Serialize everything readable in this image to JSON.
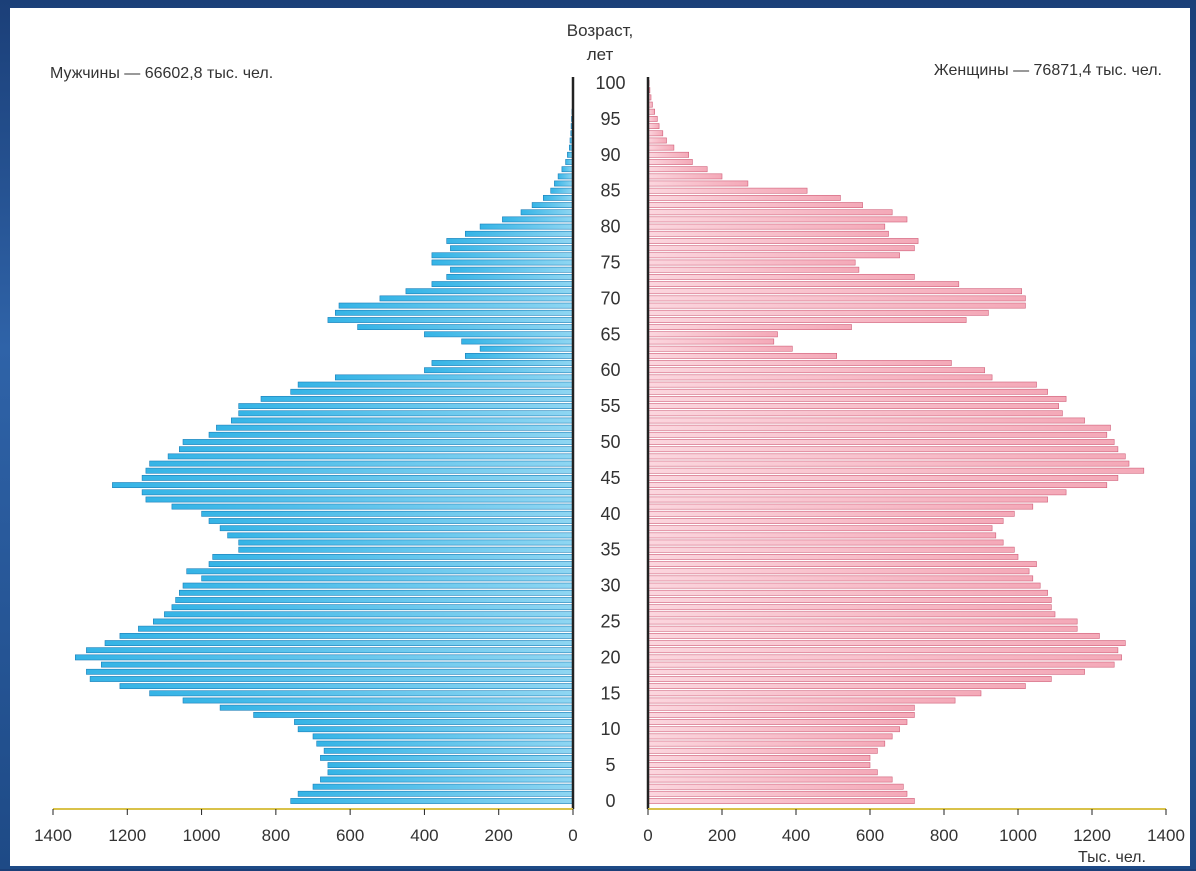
{
  "colors": {
    "male_bar": "#35b4e6",
    "male_bar_light": "#8fd6f2",
    "male_stroke": "#1d7fb8",
    "female_bar": "#f4a9b8",
    "female_bar_light": "#fbd6de",
    "female_stroke": "#d0607a",
    "axis": "#222222",
    "baseline": "#d9c24a",
    "text": "#333333"
  },
  "chart_data": {
    "type": "population_pyramid",
    "title_left": "Мужчины — 66602,8 тыс. чел.",
    "title_right": "Женщины — 76871,4 тыс. чел.",
    "age_axis_label_line1": "Возраст,",
    "age_axis_label_line2": "лет",
    "value_axis_unit": "Тыс. чел.",
    "age_ticks": [
      "0",
      "5",
      "10",
      "15",
      "20",
      "25",
      "30",
      "35",
      "40",
      "45",
      "50",
      "55",
      "60",
      "65",
      "70",
      "75",
      "80",
      "85",
      "90",
      "95",
      "100"
    ],
    "value_ticks_left": [
      "1400",
      "1200",
      "1000",
      "800",
      "600",
      "400",
      "200",
      "0"
    ],
    "value_ticks_right": [
      "0",
      "200",
      "400",
      "600",
      "800",
      "1000",
      "1200",
      "1400"
    ],
    "xlim": [
      0,
      1400
    ],
    "ages": [
      0,
      1,
      2,
      3,
      4,
      5,
      6,
      7,
      8,
      9,
      10,
      11,
      12,
      13,
      14,
      15,
      16,
      17,
      18,
      19,
      20,
      21,
      22,
      23,
      24,
      25,
      26,
      27,
      28,
      29,
      30,
      31,
      32,
      33,
      34,
      35,
      36,
      37,
      38,
      39,
      40,
      41,
      42,
      43,
      44,
      45,
      46,
      47,
      48,
      49,
      50,
      51,
      52,
      53,
      54,
      55,
      56,
      57,
      58,
      59,
      60,
      61,
      62,
      63,
      64,
      65,
      66,
      67,
      68,
      69,
      70,
      71,
      72,
      73,
      74,
      75,
      76,
      77,
      78,
      79,
      80,
      81,
      82,
      83,
      84,
      85,
      86,
      87,
      88,
      89,
      90,
      91,
      92,
      93,
      94,
      95,
      96,
      97,
      98,
      99,
      100
    ],
    "series": [
      {
        "name": "Мужчины",
        "values": [
          760,
          740,
          700,
          680,
          660,
          660,
          680,
          670,
          690,
          700,
          740,
          750,
          860,
          950,
          1050,
          1140,
          1220,
          1300,
          1310,
          1270,
          1340,
          1310,
          1260,
          1220,
          1170,
          1130,
          1100,
          1080,
          1070,
          1060,
          1050,
          1000,
          1040,
          980,
          970,
          900,
          900,
          930,
          950,
          980,
          1000,
          1080,
          1150,
          1160,
          1240,
          1160,
          1150,
          1140,
          1090,
          1060,
          1050,
          980,
          960,
          920,
          900,
          900,
          840,
          760,
          740,
          640,
          400,
          380,
          290,
          250,
          300,
          400,
          580,
          660,
          640,
          630,
          520,
          450,
          380,
          340,
          330,
          380,
          380,
          330,
          340,
          290,
          250,
          190,
          140,
          110,
          80,
          60,
          50,
          40,
          30,
          20,
          15,
          10,
          8,
          6,
          5,
          4,
          3,
          2,
          2,
          1,
          1
        ]
      },
      {
        "name": "Женщины",
        "values": [
          720,
          700,
          690,
          660,
          620,
          600,
          600,
          620,
          640,
          660,
          680,
          700,
          720,
          720,
          830,
          900,
          1020,
          1090,
          1180,
          1260,
          1280,
          1270,
          1290,
          1220,
          1160,
          1160,
          1100,
          1090,
          1090,
          1080,
          1060,
          1040,
          1030,
          1050,
          1000,
          990,
          960,
          940,
          930,
          960,
          990,
          1040,
          1080,
          1130,
          1240,
          1270,
          1340,
          1300,
          1290,
          1270,
          1260,
          1240,
          1250,
          1180,
          1120,
          1110,
          1130,
          1080,
          1050,
          930,
          910,
          820,
          510,
          390,
          340,
          350,
          550,
          860,
          920,
          1020,
          1020,
          1010,
          840,
          720,
          570,
          560,
          680,
          720,
          730,
          650,
          640,
          700,
          660,
          580,
          520,
          430,
          270,
          200,
          160,
          120,
          110,
          70,
          50,
          40,
          30,
          25,
          18,
          12,
          8,
          5,
          3
        ]
      }
    ]
  }
}
